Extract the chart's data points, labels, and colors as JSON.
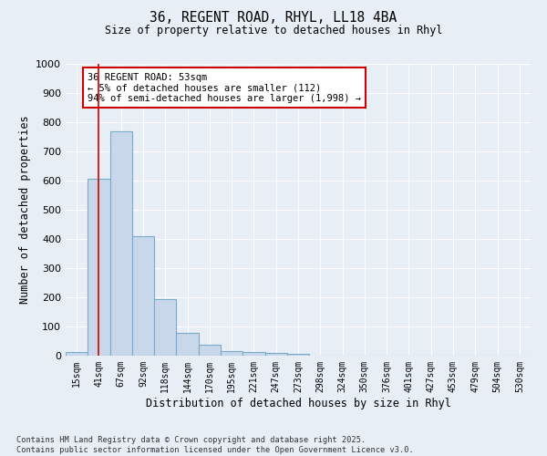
{
  "title_line1": "36, REGENT ROAD, RHYL, LL18 4BA",
  "title_line2": "Size of property relative to detached houses in Rhyl",
  "xlabel": "Distribution of detached houses by size in Rhyl",
  "ylabel": "Number of detached properties",
  "categories": [
    "15sqm",
    "41sqm",
    "67sqm",
    "92sqm",
    "118sqm",
    "144sqm",
    "170sqm",
    "195sqm",
    "221sqm",
    "247sqm",
    "273sqm",
    "298sqm",
    "324sqm",
    "350sqm",
    "376sqm",
    "401sqm",
    "427sqm",
    "453sqm",
    "479sqm",
    "504sqm",
    "530sqm"
  ],
  "values": [
    13,
    605,
    770,
    410,
    195,
    78,
    38,
    15,
    13,
    10,
    5,
    0,
    0,
    0,
    0,
    0,
    0,
    0,
    0,
    0,
    0
  ],
  "bar_color": "#c8d8ea",
  "bar_edge_color": "#7aaac8",
  "vline_x": 1.0,
  "vline_color": "#cc0000",
  "annotation_title": "36 REGENT ROAD: 53sqm",
  "annotation_line2": "← 5% of detached houses are smaller (112)",
  "annotation_line3": "94% of semi-detached houses are larger (1,998) →",
  "annotation_box_color": "#cc0000",
  "annotation_bg": "#ffffff",
  "ylim": [
    0,
    1000
  ],
  "yticks": [
    0,
    100,
    200,
    300,
    400,
    500,
    600,
    700,
    800,
    900,
    1000
  ],
  "bg_color": "#e8eef6",
  "plot_bg_color": "#e8eef6",
  "grid_color": "#ffffff",
  "footer_line1": "Contains HM Land Registry data © Crown copyright and database right 2025.",
  "footer_line2": "Contains public sector information licensed under the Open Government Licence v3.0."
}
